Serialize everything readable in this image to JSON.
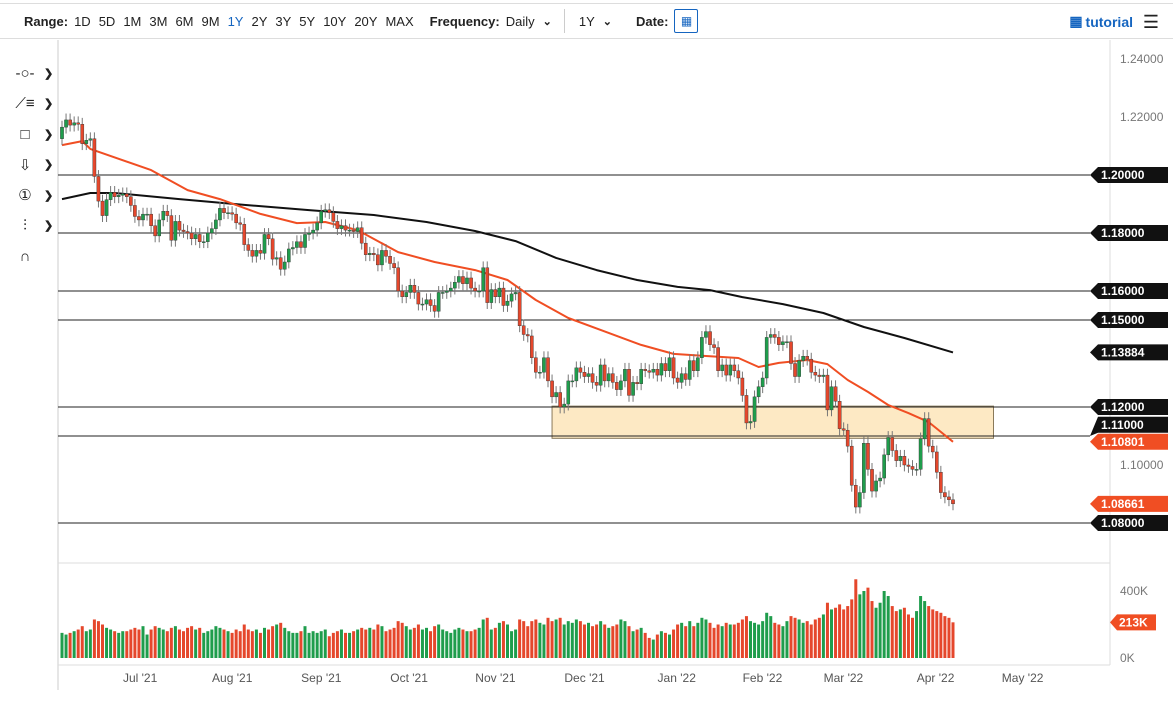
{
  "toolbar": {
    "range_label": "Range:",
    "ranges": [
      "1D",
      "5D",
      "1M",
      "3M",
      "6M",
      "9M",
      "1Y",
      "2Y",
      "3Y",
      "5Y",
      "10Y",
      "20Y",
      "MAX"
    ],
    "active_range": "1Y",
    "frequency_label": "Frequency:",
    "frequency_value": "Daily",
    "period_value": "1Y",
    "date_label": "Date:",
    "tutorial_label": "tutorial",
    "accent_color": "#1565c0"
  },
  "left_tools": [
    {
      "icon": "line-tool-icon",
      "glyph": "-○-"
    },
    {
      "icon": "trendline-list-icon",
      "glyph": "⟋≡"
    },
    {
      "icon": "rectangle-tool-icon",
      "glyph": "□"
    },
    {
      "icon": "arrow-down-icon",
      "glyph": "⇩"
    },
    {
      "icon": "numbered-marker-icon",
      "glyph": "①"
    },
    {
      "icon": "measure-tool-icon",
      "glyph": "⫶"
    },
    {
      "icon": "magnet-icon",
      "glyph": "∩"
    }
  ],
  "chart_data": {
    "type": "candlestick",
    "frequency": "Daily",
    "price_axis": {
      "ylim": [
        1.075,
        1.245
      ],
      "tick_labels": [
        "1.24000",
        "1.22000",
        "1.10000"
      ],
      "ticks": [
        1.24,
        1.22,
        1.1
      ]
    },
    "volume_axis": {
      "ylim": [
        0,
        420
      ],
      "unit": "K",
      "tick_labels": [
        "400K",
        "0K"
      ],
      "ticks": [
        400,
        0
      ]
    },
    "x_tick_labels": [
      {
        "date": "2021-07-01",
        "label": "Jul '21"
      },
      {
        "date": "2021-08-02",
        "label": "Aug '21"
      },
      {
        "date": "2021-09-01",
        "label": "Sep '21"
      },
      {
        "date": "2021-10-01",
        "label": "Oct '21"
      },
      {
        "date": "2021-11-01",
        "label": "Nov '21"
      },
      {
        "date": "2021-12-01",
        "label": "Dec '21"
      },
      {
        "date": "2022-01-03",
        "label": "Jan '22"
      },
      {
        "date": "2022-02-01",
        "label": "Feb '22"
      },
      {
        "date": "2022-03-01",
        "label": "Mar '22"
      },
      {
        "date": "2022-04-01",
        "label": "Apr '22"
      },
      {
        "date": "2022-05-02",
        "label": "May '22"
      }
    ],
    "colors": {
      "up": "#1f9d4c",
      "down": "#e5472c",
      "ma_fast": "#f04e23",
      "ma_slow": "#111111",
      "zone": "#fde9c4"
    },
    "weeks": [
      {
        "w": "2021-06-04",
        "c": [
          1.2165
        ],
        "v": [
          150
        ]
      },
      {
        "w": "2021-06-07",
        "c": [
          1.219,
          1.2172,
          1.218,
          1.2175,
          1.2108
        ],
        "v": [
          140,
          150,
          160,
          170,
          190
        ]
      },
      {
        "w": "2021-06-14",
        "c": [
          1.212,
          1.2125,
          1.1995,
          1.191,
          1.186
        ],
        "v": [
          160,
          170,
          230,
          220,
          200
        ]
      },
      {
        "w": "2021-06-21",
        "c": [
          1.1915,
          1.194,
          1.1925,
          1.193,
          1.1935
        ],
        "v": [
          180,
          170,
          160,
          150,
          160
        ]
      },
      {
        "w": "2021-06-28",
        "c": [
          1.1925,
          1.1895,
          1.1857,
          1.1845,
          1.1865
        ],
        "v": [
          160,
          170,
          180,
          170,
          190
        ]
      },
      {
        "w": "2021-07-05",
        "c": [
          1.1865,
          1.1825,
          1.179,
          1.1845,
          1.1875
        ],
        "v": [
          140,
          170,
          190,
          180,
          170
        ]
      },
      {
        "w": "2021-07-12",
        "c": [
          1.186,
          1.1775,
          1.184,
          1.181,
          1.1805
        ],
        "v": [
          160,
          180,
          190,
          170,
          160
        ]
      },
      {
        "w": "2021-07-19",
        "c": [
          1.18,
          1.178,
          1.1795,
          1.177,
          1.177
        ],
        "v": [
          180,
          190,
          170,
          180,
          150
        ]
      },
      {
        "w": "2021-07-26",
        "c": [
          1.18,
          1.1815,
          1.1845,
          1.1885,
          1.187
        ],
        "v": [
          160,
          170,
          190,
          180,
          170
        ]
      },
      {
        "w": "2021-08-02",
        "c": [
          1.187,
          1.1865,
          1.1835,
          1.183,
          1.176
        ],
        "v": [
          160,
          150,
          170,
          160,
          200
        ]
      },
      {
        "w": "2021-08-09",
        "c": [
          1.174,
          1.172,
          1.174,
          1.173,
          1.1795
        ],
        "v": [
          170,
          160,
          170,
          150,
          180
        ]
      },
      {
        "w": "2021-08-16",
        "c": [
          1.178,
          1.171,
          1.1715,
          1.1675,
          1.17
        ],
        "v": [
          170,
          190,
          200,
          210,
          180
        ]
      },
      {
        "w": "2021-08-23",
        "c": [
          1.1745,
          1.175,
          1.177,
          1.175,
          1.1795
        ],
        "v": [
          160,
          150,
          150,
          160,
          190
        ]
      },
      {
        "w": "2021-08-30",
        "c": [
          1.18,
          1.181,
          1.1835,
          1.1875,
          1.188
        ],
        "v": [
          150,
          160,
          150,
          160,
          170
        ]
      },
      {
        "w": "2021-09-06",
        "c": [
          1.187,
          1.184,
          1.1815,
          1.1825,
          1.181
        ],
        "v": [
          130,
          150,
          160,
          170,
          150
        ]
      },
      {
        "w": "2021-09-13",
        "c": [
          1.181,
          1.1805,
          1.1818,
          1.1765,
          1.1725
        ],
        "v": [
          150,
          160,
          170,
          180,
          170
        ]
      },
      {
        "w": "2021-09-20",
        "c": [
          1.173,
          1.1725,
          1.169,
          1.174,
          1.172
        ],
        "v": [
          180,
          170,
          200,
          190,
          160
        ]
      },
      {
        "w": "2021-09-27",
        "c": [
          1.1695,
          1.168,
          1.16,
          1.158,
          1.1595
        ],
        "v": [
          170,
          180,
          220,
          210,
          190
        ]
      },
      {
        "w": "2021-10-04",
        "c": [
          1.162,
          1.1595,
          1.1555,
          1.1555,
          1.157
        ],
        "v": [
          170,
          180,
          200,
          170,
          180
        ]
      },
      {
        "w": "2021-10-11",
        "c": [
          1.155,
          1.153,
          1.1595,
          1.1595,
          1.16
        ],
        "v": [
          160,
          190,
          200,
          170,
          160
        ]
      },
      {
        "w": "2021-10-18",
        "c": [
          1.161,
          1.163,
          1.165,
          1.1625,
          1.1645
        ],
        "v": [
          150,
          170,
          180,
          170,
          160
        ]
      },
      {
        "w": "2021-10-25",
        "c": [
          1.161,
          1.16,
          1.16,
          1.168,
          1.156
        ],
        "v": [
          160,
          170,
          180,
          230,
          240
        ]
      },
      {
        "w": "2021-11-01",
        "c": [
          1.1605,
          1.158,
          1.161,
          1.155,
          1.1565
        ],
        "v": [
          170,
          180,
          210,
          220,
          200
        ]
      },
      {
        "w": "2021-11-08",
        "c": [
          1.159,
          1.1595,
          1.148,
          1.145,
          1.1445
        ],
        "v": [
          160,
          170,
          230,
          220,
          190
        ]
      },
      {
        "w": "2021-11-15",
        "c": [
          1.137,
          1.132,
          1.132,
          1.137,
          1.129
        ],
        "v": [
          220,
          230,
          210,
          200,
          240
        ]
      },
      {
        "w": "2021-11-22",
        "c": [
          1.1235,
          1.125,
          1.12,
          1.121,
          1.129
        ],
        "v": [
          220,
          230,
          240,
          200,
          220
        ]
      },
      {
        "w": "2021-11-29",
        "c": [
          1.129,
          1.1335,
          1.132,
          1.1305,
          1.1315
        ],
        "v": [
          210,
          230,
          220,
          200,
          210
        ]
      },
      {
        "w": "2021-12-06",
        "c": [
          1.1285,
          1.1275,
          1.1345,
          1.129,
          1.1315
        ],
        "v": [
          190,
          200,
          220,
          200,
          180
        ]
      },
      {
        "w": "2021-12-13",
        "c": [
          1.1285,
          1.126,
          1.129,
          1.133,
          1.124
        ],
        "v": [
          190,
          200,
          230,
          220,
          190
        ]
      },
      {
        "w": "2021-12-20",
        "c": [
          1.1285,
          1.128,
          1.133,
          1.1325,
          1.132
        ],
        "v": [
          160,
          170,
          180,
          150,
          120
        ]
      },
      {
        "w": "2021-12-27",
        "c": [
          1.133,
          1.131,
          1.135,
          1.1325,
          1.137
        ],
        "v": [
          110,
          140,
          160,
          150,
          140
        ]
      },
      {
        "w": "2022-01-03",
        "c": [
          1.13,
          1.1285,
          1.1315,
          1.1295,
          1.136
        ],
        "v": [
          170,
          200,
          210,
          190,
          220
        ]
      },
      {
        "w": "2022-01-10",
        "c": [
          1.1325,
          1.137,
          1.144,
          1.146,
          1.1415
        ],
        "v": [
          190,
          210,
          240,
          230,
          210
        ]
      },
      {
        "w": "2022-01-17",
        "c": [
          1.1405,
          1.1325,
          1.1345,
          1.131,
          1.1345
        ],
        "v": [
          180,
          200,
          190,
          210,
          200
        ]
      },
      {
        "w": "2022-01-24",
        "c": [
          1.1325,
          1.13,
          1.124,
          1.1145,
          1.115
        ],
        "v": [
          200,
          210,
          230,
          250,
          220
        ]
      },
      {
        "w": "2022-01-31",
        "c": [
          1.1235,
          1.127,
          1.13,
          1.144,
          1.145
        ],
        "v": [
          210,
          200,
          220,
          270,
          250
        ]
      },
      {
        "w": "2022-02-07",
        "c": [
          1.144,
          1.1415,
          1.1425,
          1.1425,
          1.135
        ],
        "v": [
          210,
          200,
          190,
          220,
          250
        ]
      },
      {
        "w": "2022-02-14",
        "c": [
          1.1305,
          1.136,
          1.1375,
          1.1365,
          1.132
        ],
        "v": [
          240,
          230,
          210,
          220,
          200
        ]
      },
      {
        "w": "2022-02-21",
        "c": [
          1.131,
          1.1305,
          1.131,
          1.119,
          1.127
        ],
        "v": [
          230,
          240,
          260,
          330,
          290
        ]
      },
      {
        "w": "2022-02-28",
        "c": [
          1.122,
          1.1125,
          1.112,
          1.1065,
          1.093
        ],
        "v": [
          300,
          320,
          290,
          310,
          350
        ]
      },
      {
        "w": "2022-03-07",
        "c": [
          1.0855,
          1.0905,
          1.1075,
          1.0985,
          1.091
        ],
        "v": [
          470,
          380,
          400,
          420,
          340
        ]
      },
      {
        "w": "2022-03-14",
        "c": [
          1.0945,
          1.0955,
          1.1035,
          1.1095,
          1.105
        ],
        "v": [
          300,
          330,
          400,
          370,
          310
        ]
      },
      {
        "w": "2022-03-21",
        "c": [
          1.1015,
          1.103,
          1.1,
          1.0995,
          1.0985
        ],
        "v": [
          280,
          290,
          300,
          260,
          240
        ]
      },
      {
        "w": "2022-03-28",
        "c": [
          1.0985,
          1.109,
          1.116,
          1.1065,
          1.1045
        ],
        "v": [
          280,
          370,
          340,
          310,
          290
        ]
      },
      {
        "w": "2022-04-04",
        "c": [
          1.0975,
          1.0905,
          1.089,
          1.088,
          1.08661
        ],
        "v": [
          280,
          270,
          250,
          240,
          213
        ]
      }
    ],
    "ma_fast": [
      {
        "date": "2021-06-04",
        "value": 1.2103
      },
      {
        "date": "2021-06-11",
        "value": 1.2117
      },
      {
        "date": "2021-06-15",
        "value": 1.209
      },
      {
        "date": "2021-07-06",
        "value": 1.2017
      },
      {
        "date": "2021-07-19",
        "value": 1.1948
      },
      {
        "date": "2021-07-29",
        "value": 1.1917
      },
      {
        "date": "2021-08-12",
        "value": 1.1866
      },
      {
        "date": "2021-08-25",
        "value": 1.1834
      },
      {
        "date": "2021-09-03",
        "value": 1.1838
      },
      {
        "date": "2021-09-15",
        "value": 1.181
      },
      {
        "date": "2021-09-29",
        "value": 1.1734
      },
      {
        "date": "2021-10-12",
        "value": 1.17
      },
      {
        "date": "2021-10-26",
        "value": 1.1672
      },
      {
        "date": "2021-11-05",
        "value": 1.1638
      },
      {
        "date": "2021-11-16",
        "value": 1.1569
      },
      {
        "date": "2021-11-26",
        "value": 1.1507
      },
      {
        "date": "2021-12-08",
        "value": 1.1466
      },
      {
        "date": "2021-12-22",
        "value": 1.1414
      },
      {
        "date": "2022-01-03",
        "value": 1.1383
      },
      {
        "date": "2022-01-13",
        "value": 1.1376
      },
      {
        "date": "2022-01-25",
        "value": 1.1369
      },
      {
        "date": "2022-02-01",
        "value": 1.1338
      },
      {
        "date": "2022-02-08",
        "value": 1.1352
      },
      {
        "date": "2022-02-17",
        "value": 1.1362
      },
      {
        "date": "2022-02-24",
        "value": 1.1348
      },
      {
        "date": "2022-03-03",
        "value": 1.1293
      },
      {
        "date": "2022-03-10",
        "value": 1.1252
      },
      {
        "date": "2022-03-17",
        "value": 1.1207
      },
      {
        "date": "2022-03-24",
        "value": 1.1179
      },
      {
        "date": "2022-03-31",
        "value": 1.1148
      },
      {
        "date": "2022-04-05",
        "value": 1.1114
      },
      {
        "date": "2022-04-08",
        "value": 1.10801
      }
    ],
    "ma_slow": [
      {
        "date": "2021-06-04",
        "value": 1.1917
      },
      {
        "date": "2021-06-15",
        "value": 1.1938
      },
      {
        "date": "2021-06-23",
        "value": 1.1938
      },
      {
        "date": "2021-07-15",
        "value": 1.1917
      },
      {
        "date": "2021-08-06",
        "value": 1.1897
      },
      {
        "date": "2021-08-30",
        "value": 1.1879
      },
      {
        "date": "2021-09-21",
        "value": 1.1862
      },
      {
        "date": "2021-10-08",
        "value": 1.1838
      },
      {
        "date": "2021-10-26",
        "value": 1.1807
      },
      {
        "date": "2021-11-09",
        "value": 1.1772
      },
      {
        "date": "2021-11-23",
        "value": 1.1714
      },
      {
        "date": "2021-12-07",
        "value": 1.1672
      },
      {
        "date": "2021-12-21",
        "value": 1.1638
      },
      {
        "date": "2022-01-04",
        "value": 1.1614
      },
      {
        "date": "2022-01-14",
        "value": 1.1603
      },
      {
        "date": "2022-01-26",
        "value": 1.1579
      },
      {
        "date": "2022-02-09",
        "value": 1.1555
      },
      {
        "date": "2022-02-23",
        "value": 1.1524
      },
      {
        "date": "2022-03-09",
        "value": 1.1476
      },
      {
        "date": "2022-03-23",
        "value": 1.1438
      },
      {
        "date": "2022-04-08",
        "value": 1.13884
      }
    ],
    "horizontal_lines": [
      {
        "price": 1.2,
        "label": "1.20000"
      },
      {
        "price": 1.18,
        "label": "1.18000"
      },
      {
        "price": 1.16,
        "label": "1.16000"
      },
      {
        "price": 1.15,
        "label": "1.15000"
      },
      {
        "price": 1.12,
        "label": "1.12000"
      },
      {
        "price": 1.11,
        "label": "1.11000"
      },
      {
        "price": 1.08,
        "label": "1.08000"
      }
    ],
    "zone": {
      "from": "2021-11-22",
      "to": "2022-04-22",
      "low": 1.1092,
      "high": 1.1203
    },
    "price_tags": [
      {
        "price": 1.13884,
        "label": "1.13884",
        "color": "#111111"
      },
      {
        "price": 1.10801,
        "label": "1.10801",
        "color": "#f04e23"
      },
      {
        "price": 1.08661,
        "label": "1.08661",
        "color": "#f04e23"
      }
    ],
    "volume_tag": {
      "value": 213,
      "label": "213K",
      "color": "#f04e23"
    }
  }
}
